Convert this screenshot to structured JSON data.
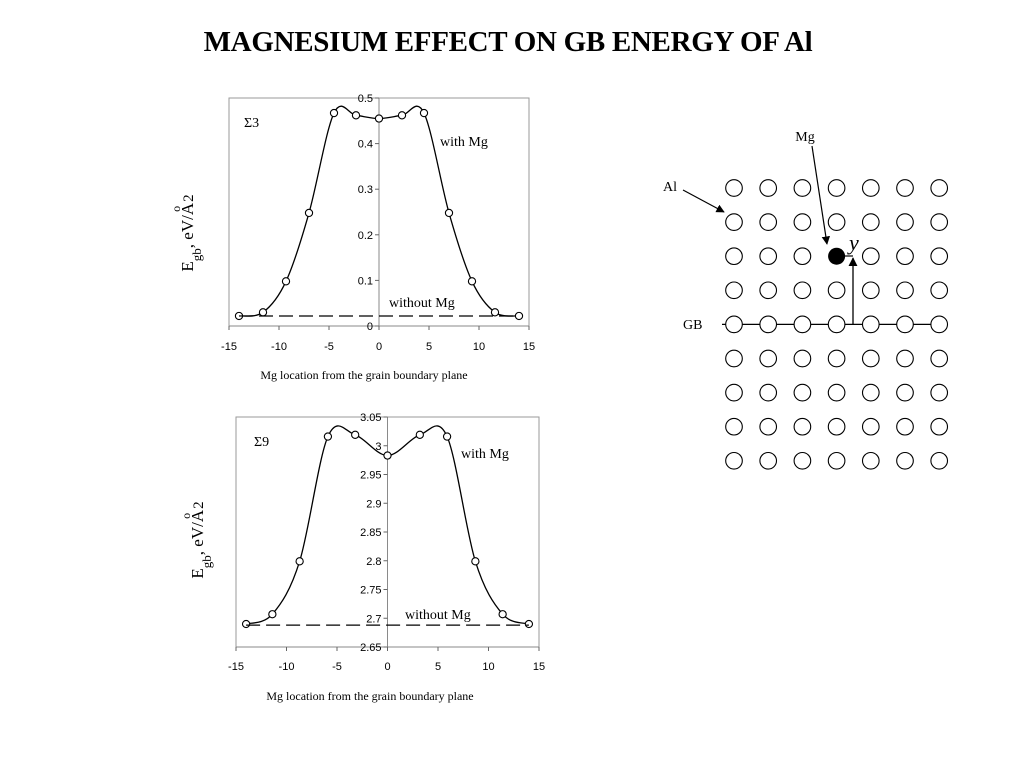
{
  "page_title": "MAGNESIUM EFFECT ON GB ENERGY OF Al",
  "chart_data": [
    {
      "type": "line",
      "panel_label": "Σ3",
      "xlabel": "Mg location from the grain boundary plane",
      "ylabel": {
        "main": "E",
        "sub": "gb",
        "unit": ", eV/A",
        "circle": "o",
        "power": "2"
      },
      "xlim": [
        -15,
        15
      ],
      "ylim": [
        0,
        0.5
      ],
      "x_ticks": [
        "-15",
        "-10",
        "-5",
        "0",
        "5",
        "10",
        "15"
      ],
      "y_ticks": [
        "0",
        "0.1",
        "0.2",
        "0.3",
        "0.4",
        "0.5"
      ],
      "series": [
        {
          "name": "with Mg",
          "style": "solid-with-open-markers",
          "x": [
            -14,
            -11.6,
            -9.3,
            -7,
            -4.5,
            -2.3,
            0,
            2.3,
            4.5,
            7,
            9.3,
            11.6,
            14
          ],
          "y": [
            0.022,
            0.03,
            0.098,
            0.248,
            0.467,
            0.462,
            0.455,
            0.462,
            0.467,
            0.248,
            0.098,
            0.03,
            0.022
          ]
        },
        {
          "name": "without Mg",
          "style": "dashed",
          "x": [
            -14,
            14
          ],
          "y": [
            0.022,
            0.022
          ]
        }
      ]
    },
    {
      "type": "line",
      "panel_label": "Σ9",
      "xlabel": "Mg location from the grain boundary plane",
      "ylabel": {
        "main": "E",
        "sub": "gb",
        "unit": ", eV/A",
        "circle": "o",
        "power": "2"
      },
      "xlim": [
        -15,
        15
      ],
      "ylim": [
        2.65,
        3.05
      ],
      "x_ticks": [
        "-15",
        "-10",
        "-5",
        "0",
        "5",
        "10",
        "15"
      ],
      "y_ticks": [
        "2.65",
        "2.7",
        "2.75",
        "2.8",
        "2.85",
        "2.9",
        "2.95",
        "3",
        "3.05"
      ],
      "series": [
        {
          "name": "with Mg",
          "style": "solid-with-open-markers",
          "x": [
            -14,
            -11.4,
            -8.7,
            -5.9,
            -3.2,
            0,
            3.2,
            5.9,
            8.7,
            11.4,
            14
          ],
          "y": [
            2.69,
            2.707,
            2.799,
            3.016,
            3.019,
            2.983,
            3.019,
            3.016,
            2.799,
            2.707,
            2.69
          ]
        },
        {
          "name": "without Mg",
          "style": "dashed",
          "x": [
            -14,
            14
          ],
          "y": [
            2.688,
            2.688
          ]
        }
      ]
    }
  ],
  "diagram": {
    "labels": {
      "mg": "Mg",
      "al": "Al",
      "gb": "GB",
      "y": "y"
    },
    "lattice": {
      "columns": 7,
      "rows": 9,
      "gb_row_index": 4
    },
    "mg_atom": {
      "column": 3,
      "row": 2
    }
  }
}
